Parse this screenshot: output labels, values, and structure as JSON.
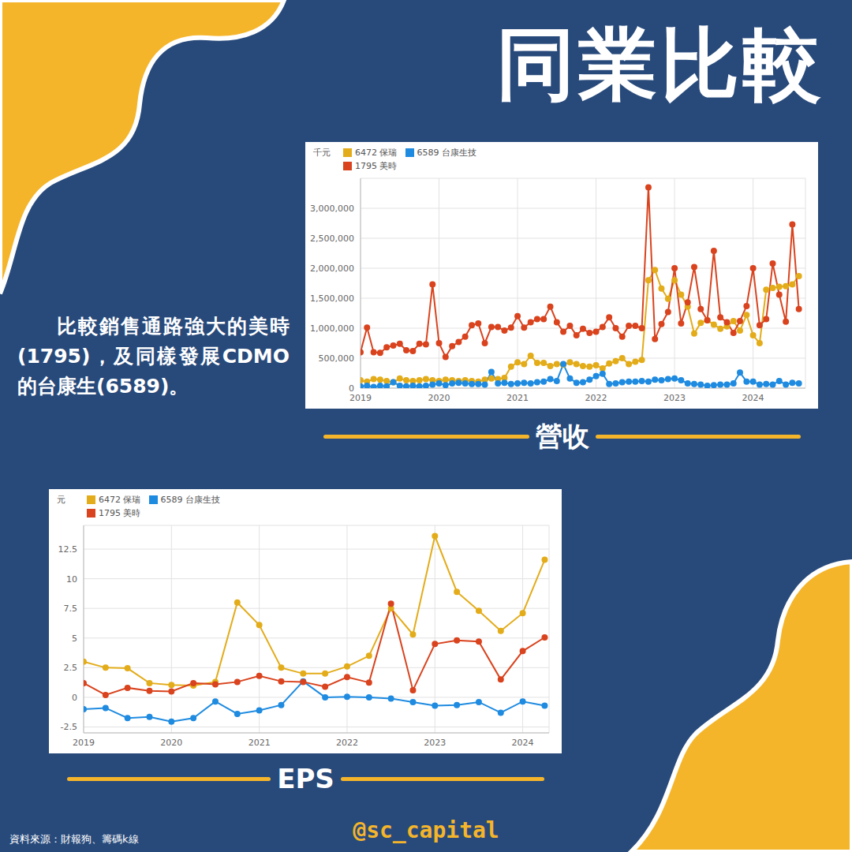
{
  "title": "同業比較",
  "description": "比較銷售通路強大的美時(1795)，及同樣發展CDMO的台康生(6589)。",
  "source": "資料來源：財報狗、籌碼k線",
  "handle": "@sc_capital",
  "chart_data": [
    {
      "type": "line",
      "title": "營收",
      "ylabel": "千元",
      "legend": "top-left",
      "grid": true,
      "xlim": [
        2019,
        2024.667
      ],
      "xticks": [
        2019,
        2020,
        2021,
        2022,
        2023,
        2024
      ],
      "ylim": [
        0,
        3500000
      ],
      "yticks": [
        0,
        {
          "value": 500000,
          "label": "500,000"
        },
        {
          "value": 1000000,
          "label": "1,000,000"
        },
        {
          "value": 1500000,
          "label": "1,500,000"
        },
        {
          "value": 2000000,
          "label": "2,000,000"
        },
        {
          "value": 2500000,
          "label": "2,500,000"
        },
        {
          "value": 3000000,
          "label": "3,000,000"
        }
      ],
      "x": [
        2019,
        2019.083,
        2019.167,
        2019.25,
        2019.333,
        2019.417,
        2019.5,
        2019.583,
        2019.667,
        2019.75,
        2019.833,
        2019.917,
        2020,
        2020.083,
        2020.167,
        2020.25,
        2020.333,
        2020.417,
        2020.5,
        2020.583,
        2020.667,
        2020.75,
        2020.833,
        2020.917,
        2021,
        2021.083,
        2021.167,
        2021.25,
        2021.333,
        2021.417,
        2021.5,
        2021.583,
        2021.667,
        2021.75,
        2021.833,
        2021.917,
        2022,
        2022.083,
        2022.167,
        2022.25,
        2022.333,
        2022.417,
        2022.5,
        2022.583,
        2022.667,
        2022.75,
        2022.833,
        2022.917,
        2023,
        2023.083,
        2023.167,
        2023.25,
        2023.333,
        2023.417,
        2023.5,
        2023.583,
        2023.667,
        2023.75,
        2023.833,
        2023.917,
        2024,
        2024.083,
        2024.167,
        2024.25,
        2024.333,
        2024.417,
        2024.5,
        2024.583
      ],
      "series": [
        {
          "name": "6472 保瑞",
          "color": "#e3ac1a",
          "marker": "circle",
          "values": [
            130000,
            110000,
            150000,
            140000,
            120000,
            100000,
            160000,
            130000,
            120000,
            130000,
            150000,
            130000,
            120000,
            140000,
            130000,
            120000,
            130000,
            120000,
            110000,
            140000,
            160000,
            150000,
            170000,
            360000,
            430000,
            400000,
            540000,
            420000,
            420000,
            370000,
            400000,
            390000,
            430000,
            400000,
            370000,
            360000,
            380000,
            330000,
            410000,
            450000,
            500000,
            400000,
            440000,
            470000,
            1800000,
            1970000,
            1660000,
            1490000,
            1800000,
            1560000,
            1360000,
            910000,
            1090000,
            1130000,
            1060000,
            990000,
            1030000,
            1120000,
            960000,
            1220000,
            880000,
            750000,
            1640000,
            1670000,
            1690000,
            1700000,
            1730000,
            1870000
          ]
        },
        {
          "name": "6589 台康生技",
          "color": "#1f8be0",
          "marker": "circle",
          "values": [
            30000,
            40000,
            20000,
            40000,
            30000,
            100000,
            40000,
            30000,
            40000,
            30000,
            40000,
            60000,
            80000,
            50000,
            80000,
            90000,
            80000,
            70000,
            70000,
            60000,
            270000,
            80000,
            90000,
            70000,
            80000,
            90000,
            80000,
            100000,
            110000,
            150000,
            120000,
            400000,
            160000,
            90000,
            100000,
            140000,
            200000,
            240000,
            70000,
            80000,
            100000,
            110000,
            110000,
            120000,
            110000,
            140000,
            130000,
            150000,
            160000,
            130000,
            80000,
            70000,
            60000,
            40000,
            50000,
            60000,
            60000,
            80000,
            260000,
            110000,
            110000,
            60000,
            70000,
            60000,
            120000,
            60000,
            90000,
            80000
          ]
        },
        {
          "name": "1795 美時",
          "color": "#d9431e",
          "marker": "circle",
          "values": [
            600000,
            1010000,
            600000,
            590000,
            680000,
            710000,
            740000,
            630000,
            620000,
            740000,
            730000,
            1730000,
            750000,
            520000,
            700000,
            770000,
            860000,
            1050000,
            1080000,
            750000,
            1020000,
            1020000,
            960000,
            1010000,
            1200000,
            1010000,
            1100000,
            1150000,
            1150000,
            1360000,
            1100000,
            940000,
            1040000,
            880000,
            990000,
            920000,
            940000,
            1020000,
            1180000,
            1000000,
            860000,
            1040000,
            1040000,
            1000000,
            3350000,
            820000,
            1070000,
            1270000,
            2000000,
            1080000,
            1430000,
            2020000,
            1320000,
            1130000,
            2290000,
            1180000,
            1100000,
            920000,
            1120000,
            1370000,
            2000000,
            1050000,
            1150000,
            2080000,
            1560000,
            1110000,
            2730000,
            1320000
          ]
        }
      ]
    },
    {
      "type": "line",
      "title": "EPS",
      "ylabel": "元",
      "legend": "top-left",
      "grid": true,
      "xlim": [
        2019,
        2024.3
      ],
      "xticks": [
        2019,
        2020,
        2021,
        2022,
        2023,
        2024
      ],
      "ylim": [
        -3,
        14.5
      ],
      "yticks": [
        -2.5,
        0,
        2.5,
        5,
        7.5,
        10,
        12.5
      ],
      "x": [
        2019,
        2019.25,
        2019.5,
        2019.75,
        2020,
        2020.25,
        2020.5,
        2020.75,
        2021,
        2021.25,
        2021.5,
        2021.75,
        2022,
        2022.25,
        2022.5,
        2022.75,
        2023,
        2023.25,
        2023.5,
        2023.75,
        2024,
        2024.25
      ],
      "series": [
        {
          "name": "6472 保瑞",
          "color": "#e3ac1a",
          "marker": "circle",
          "values": [
            3.0,
            2.5,
            2.45,
            1.2,
            1.05,
            1.0,
            1.3,
            8.0,
            6.1,
            2.5,
            2.0,
            2.0,
            2.6,
            3.5,
            7.5,
            5.3,
            13.6,
            8.9,
            7.3,
            5.6,
            7.1,
            11.6
          ]
        },
        {
          "name": "6589 台康生技",
          "color": "#1f8be0",
          "marker": "circle",
          "values": [
            -1.0,
            -0.9,
            -1.75,
            -1.65,
            -2.05,
            -1.75,
            -0.35,
            -1.4,
            -1.1,
            -0.65,
            1.35,
            0.0,
            0.05,
            0.0,
            -0.1,
            -0.4,
            -0.7,
            -0.65,
            -0.4,
            -1.3,
            -0.35,
            -0.7
          ]
        },
        {
          "name": "1795 美時",
          "color": "#d9431e",
          "marker": "circle",
          "values": [
            1.2,
            0.2,
            0.8,
            0.55,
            0.5,
            1.2,
            1.1,
            1.3,
            1.8,
            1.35,
            1.3,
            0.9,
            1.7,
            1.25,
            7.9,
            0.6,
            4.5,
            4.8,
            4.7,
            1.5,
            3.9,
            5.05
          ]
        }
      ]
    }
  ]
}
